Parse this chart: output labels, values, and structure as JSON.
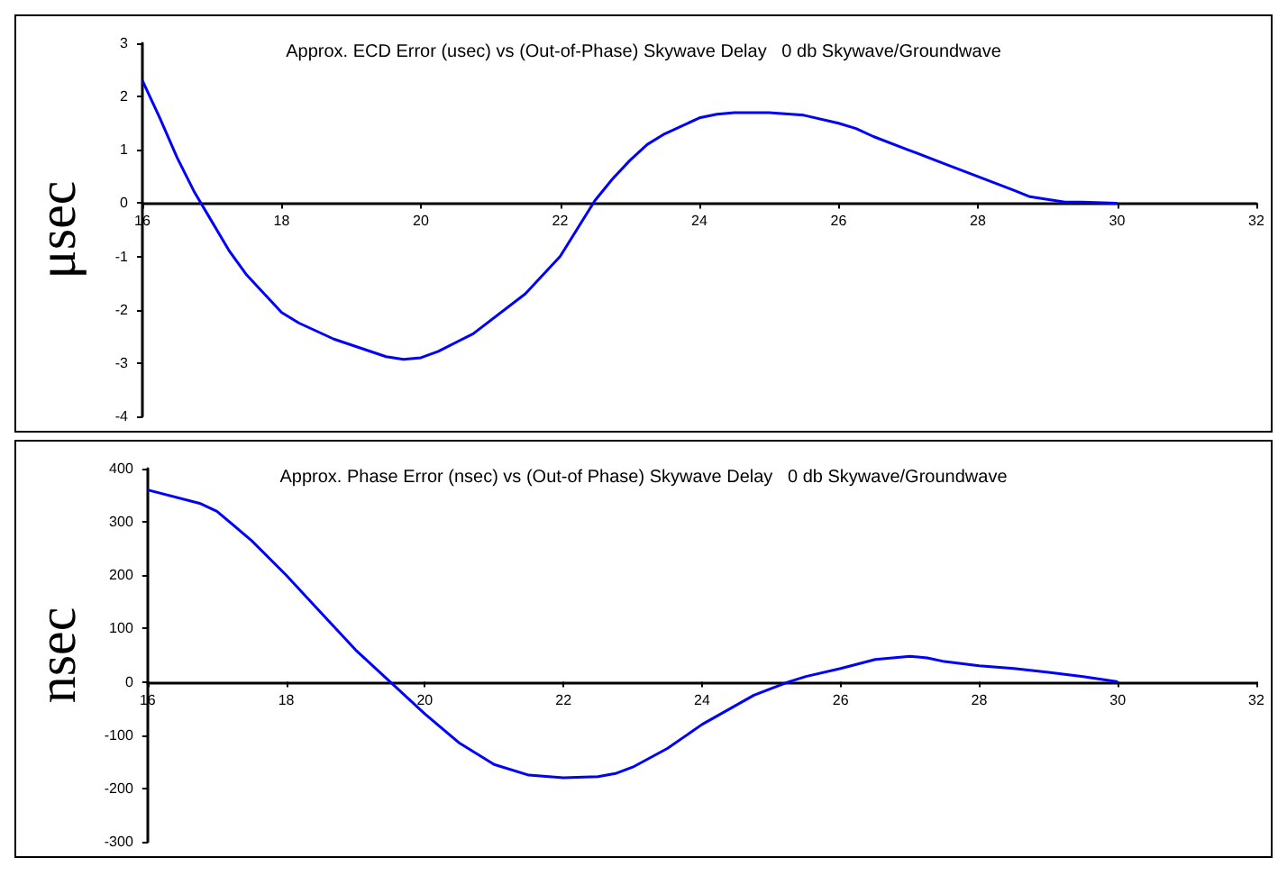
{
  "chart_data": [
    {
      "type": "line",
      "title": "Approx. ECD Error (usec) vs (Out-of-Phase) Skywave Delay   0 db Skywave/Groundwave",
      "ylabel": "μsec",
      "x": [
        16,
        16.25,
        16.5,
        16.75,
        17,
        17.25,
        17.5,
        17.75,
        18,
        18.25,
        18.75,
        19.5,
        19.75,
        20,
        20.25,
        20.75,
        21.5,
        22,
        22.5,
        22.75,
        23,
        23.25,
        23.5,
        24,
        24.25,
        24.5,
        25,
        25.5,
        26,
        26.25,
        26.5,
        27,
        27.5,
        28,
        28.5,
        28.75,
        29.25,
        29.5,
        30
      ],
      "series": [
        {
          "color": "#0000ff",
          "values": [
            2.3,
            1.6,
            0.85,
            0.2,
            -0.35,
            -0.9,
            -1.35,
            -1.7,
            -2.05,
            -2.25,
            -2.55,
            -2.88,
            -2.93,
            -2.9,
            -2.78,
            -2.45,
            -1.7,
            -1.0,
            0.05,
            0.45,
            0.8,
            1.1,
            1.3,
            1.6,
            1.67,
            1.7,
            1.7,
            1.65,
            1.5,
            1.4,
            1.25,
            1.0,
            0.75,
            0.5,
            0.25,
            0.12,
            0.02,
            0.02,
            0
          ]
        }
      ],
      "xlim": [
        16,
        32
      ],
      "xticks": [
        16,
        18,
        20,
        22,
        24,
        26,
        28,
        30,
        32
      ],
      "ylim": [
        -4,
        3
      ],
      "yticks": [
        -4,
        -3,
        -2,
        -1,
        0,
        1,
        2,
        3
      ]
    },
    {
      "type": "line",
      "title": "Approx. Phase Error (nsec) vs (Out-of Phase) Skywave Delay   0 db Skywave/Groundwave",
      "ylabel": "nsec",
      "x": [
        16,
        16.75,
        17,
        17.5,
        18,
        18.5,
        19,
        19.5,
        20,
        20.5,
        21,
        21.5,
        22,
        22.5,
        22.75,
        23,
        23.5,
        24,
        24.75,
        25.25,
        25.5,
        26,
        26.5,
        27,
        27.25,
        27.5,
        28,
        28.5,
        29,
        29.5,
        30
      ],
      "series": [
        {
          "color": "#0000ff",
          "values": [
            360,
            335,
            320,
            265,
            200,
            130,
            60,
            0,
            -60,
            -115,
            -155,
            -175,
            -180,
            -178,
            -172,
            -160,
            -125,
            -80,
            -25,
            0,
            10,
            25,
            42,
            48,
            45,
            38,
            30,
            25,
            18,
            10,
            0
          ]
        }
      ],
      "xlim": [
        16,
        32
      ],
      "xticks": [
        16,
        18,
        20,
        22,
        24,
        26,
        28,
        30,
        32
      ],
      "ylim": [
        -300,
        400
      ],
      "yticks": [
        -300,
        -200,
        -100,
        0,
        100,
        200,
        300,
        400
      ]
    }
  ]
}
